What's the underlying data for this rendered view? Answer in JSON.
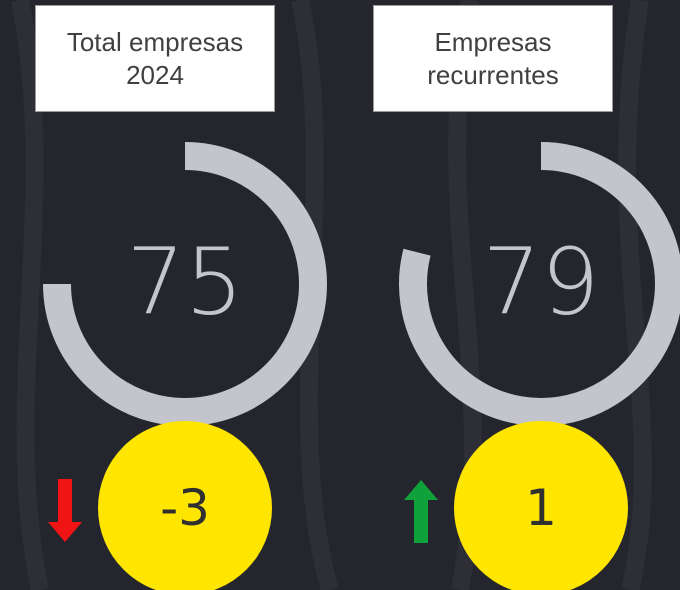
{
  "chart_data": [
    {
      "type": "gauge",
      "title": "Total empresas 2024",
      "value": 75,
      "unit": "%",
      "change": -3,
      "ylim": [
        0,
        100
      ],
      "color": "#c4c4cc",
      "badge_color": "#ffe600"
    },
    {
      "type": "gauge",
      "title": "Empresas recurrentes",
      "value": 79,
      "unit": "%",
      "change": 1,
      "ylim": [
        0,
        100
      ],
      "color": "#c4c4cc",
      "badge_color": "#ffe600"
    }
  ]
}
